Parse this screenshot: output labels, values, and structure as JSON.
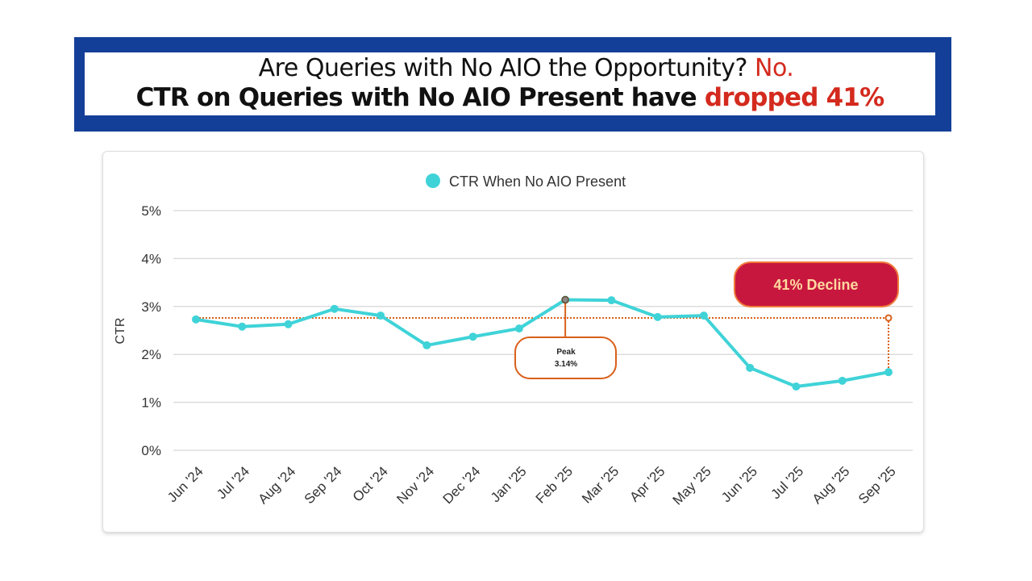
{
  "header": {
    "line1": "Are Queries with No AIO the Opportunity?",
    "line1_highlight": "No.",
    "line2": "CTR on Queries with No AIO Present have",
    "line2_highlight": "dropped 41%"
  },
  "chart_data": {
    "type": "line",
    "title": "",
    "xlabel": "",
    "ylabel": "CTR",
    "ylim": [
      0,
      5
    ],
    "yticks": [
      "0%",
      "1%",
      "2%",
      "3%",
      "4%",
      "5%"
    ],
    "grid": true,
    "legend_placement": "top-center",
    "categories": [
      "Jun '24",
      "Jul '24",
      "Aug '24",
      "Sep '24",
      "Oct '24",
      "Nov '24",
      "Dec '24",
      "Jan '25",
      "Feb '25",
      "Mar '25",
      "Apr '25",
      "May '25",
      "Jun '25",
      "Jul '25",
      "Aug '25",
      "Sep '25"
    ],
    "series": [
      {
        "name": "CTR When No AIO Present",
        "color": "#3fd3d8",
        "values": [
          2.73,
          2.58,
          2.63,
          2.95,
          2.81,
          2.19,
          2.37,
          2.54,
          3.14,
          3.13,
          2.78,
          2.81,
          1.72,
          1.33,
          1.45,
          1.63
        ]
      }
    ],
    "reference_line": {
      "value": 2.76,
      "color": "#d9601a"
    },
    "annotations": [
      {
        "label_top": "Peak",
        "label_bottom": "3.14%",
        "category": "Feb '25"
      },
      {
        "label": "41% Decline",
        "category": "Sep '25",
        "bg": "#c8173f",
        "text_color": "#ffd9a0"
      }
    ]
  }
}
